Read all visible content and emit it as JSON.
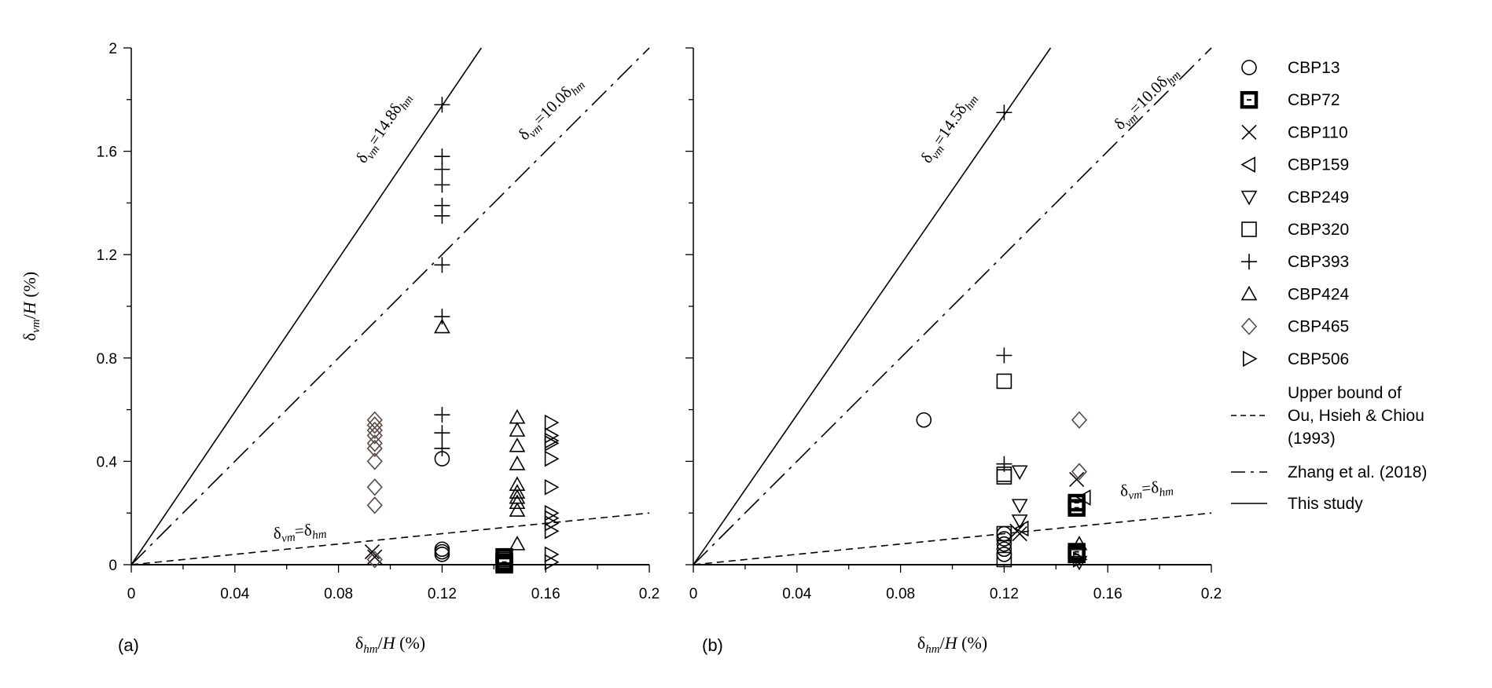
{
  "chart_data": [
    {
      "type": "scatter",
      "panel_label": "(a)",
      "xlabel": "δhm/H (%)",
      "ylabel": "δvm/H (%)",
      "xlim": [
        0,
        0.2
      ],
      "ylim": [
        0,
        2
      ],
      "x_ticks": [
        "0",
        "0.04",
        "0.08",
        "0.12",
        "0.16",
        "0.2"
      ],
      "y_ticks": [
        "0",
        "0.4",
        "0.8",
        "1.2",
        "1.6",
        "2"
      ],
      "reference_lines": [
        {
          "key": "upper_bound",
          "slope": 1.0,
          "label": "δvm=δhm"
        },
        {
          "key": "zhang",
          "slope": 10.0,
          "label": "δvm=10.0δhm"
        },
        {
          "key": "this_study",
          "slope": 14.8,
          "label": "δvm=14.8δhm"
        }
      ],
      "series": [
        {
          "name": "CBP13",
          "marker": "circle",
          "points": [
            [
              0.12,
              0.41
            ],
            [
              0.12,
              0.06
            ],
            [
              0.12,
              0.05
            ],
            [
              0.12,
              0.04
            ]
          ]
        },
        {
          "name": "CBP72",
          "marker": "square-filled",
          "points": [
            [
              0.144,
              0.03
            ],
            [
              0.144,
              0.01
            ],
            [
              0.144,
              0.0
            ]
          ]
        },
        {
          "name": "CBP110",
          "marker": "x",
          "points": [
            [
              0.093,
              0.05
            ],
            [
              0.094,
              0.03
            ]
          ]
        },
        {
          "name": "CBP159",
          "marker": "triangle-left",
          "points": []
        },
        {
          "name": "CBP249",
          "marker": "triangle-down",
          "points": []
        },
        {
          "name": "CBP320",
          "marker": "square",
          "points": [
            [
              0.144,
              0.02
            ],
            [
              0.144,
              0.0
            ]
          ]
        },
        {
          "name": "CBP393",
          "marker": "plus",
          "points": [
            [
              0.12,
              1.78
            ],
            [
              0.12,
              1.58
            ],
            [
              0.12,
              1.53
            ],
            [
              0.12,
              1.47
            ],
            [
              0.12,
              1.39
            ],
            [
              0.12,
              1.35
            ],
            [
              0.12,
              1.16
            ],
            [
              0.12,
              0.96
            ],
            [
              0.12,
              0.58
            ],
            [
              0.12,
              0.51
            ],
            [
              0.12,
              0.45
            ]
          ]
        },
        {
          "name": "CBP424",
          "marker": "triangle-up",
          "points": [
            [
              0.12,
              0.92
            ],
            [
              0.149,
              0.57
            ],
            [
              0.149,
              0.52
            ],
            [
              0.149,
              0.46
            ],
            [
              0.149,
              0.39
            ],
            [
              0.149,
              0.31
            ],
            [
              0.149,
              0.28
            ],
            [
              0.149,
              0.26
            ],
            [
              0.149,
              0.24
            ],
            [
              0.149,
              0.21
            ],
            [
              0.149,
              0.08
            ]
          ]
        },
        {
          "name": "CBP465",
          "marker": "diamond",
          "points": [
            [
              0.094,
              0.56
            ],
            [
              0.094,
              0.54
            ],
            [
              0.094,
              0.52
            ],
            [
              0.094,
              0.5
            ],
            [
              0.094,
              0.47
            ],
            [
              0.094,
              0.45
            ],
            [
              0.094,
              0.4
            ],
            [
              0.094,
              0.3
            ],
            [
              0.094,
              0.23
            ],
            [
              0.094,
              0.02
            ]
          ]
        },
        {
          "name": "CBP506",
          "marker": "triangle-right",
          "points": [
            [
              0.162,
              0.55
            ],
            [
              0.162,
              0.5
            ],
            [
              0.162,
              0.48
            ],
            [
              0.162,
              0.47
            ],
            [
              0.162,
              0.41
            ],
            [
              0.162,
              0.3
            ],
            [
              0.162,
              0.2
            ],
            [
              0.162,
              0.18
            ],
            [
              0.162,
              0.16
            ],
            [
              0.162,
              0.13
            ],
            [
              0.162,
              0.04
            ],
            [
              0.162,
              0.01
            ]
          ]
        }
      ]
    },
    {
      "type": "scatter",
      "panel_label": "(b)",
      "xlabel": "δhm/H (%)",
      "ylabel": "",
      "xlim": [
        0,
        0.2
      ],
      "ylim": [
        0,
        2
      ],
      "x_ticks": [
        "0",
        "0.04",
        "0.08",
        "0.12",
        "0.16",
        "0.2"
      ],
      "y_ticks": [],
      "reference_lines": [
        {
          "key": "upper_bound",
          "slope": 1.0,
          "label": "δvm=δhm"
        },
        {
          "key": "zhang",
          "slope": 10.0,
          "label": "δvm=10.0δhm"
        },
        {
          "key": "this_study",
          "slope": 14.5,
          "label": "δvm=14.5δhm"
        }
      ],
      "series": [
        {
          "name": "CBP13",
          "marker": "circle",
          "points": [
            [
              0.089,
              0.56
            ],
            [
              0.12,
              0.12
            ],
            [
              0.12,
              0.1
            ],
            [
              0.12,
              0.08
            ],
            [
              0.12,
              0.06
            ],
            [
              0.12,
              0.04
            ]
          ]
        },
        {
          "name": "CBP72",
          "marker": "square-filled",
          "points": [
            [
              0.148,
              0.24
            ],
            [
              0.148,
              0.22
            ],
            [
              0.148,
              0.05
            ],
            [
              0.148,
              0.04
            ]
          ]
        },
        {
          "name": "CBP110",
          "marker": "x",
          "points": [
            [
              0.148,
              0.33
            ],
            [
              0.125,
              0.13
            ],
            [
              0.126,
              0.12
            ]
          ]
        },
        {
          "name": "CBP159",
          "marker": "triangle-left",
          "points": [
            [
              0.151,
              0.26
            ],
            [
              0.127,
              0.14
            ]
          ]
        },
        {
          "name": "CBP249",
          "marker": "triangle-down",
          "points": [
            [
              0.126,
              0.36
            ],
            [
              0.126,
              0.23
            ],
            [
              0.126,
              0.17
            ],
            [
              0.149,
              0.01
            ]
          ]
        },
        {
          "name": "CBP320",
          "marker": "square",
          "points": [
            [
              0.12,
              0.71
            ],
            [
              0.12,
              0.35
            ],
            [
              0.12,
              0.34
            ],
            [
              0.12,
              0.12
            ],
            [
              0.12,
              0.02
            ]
          ]
        },
        {
          "name": "CBP393",
          "marker": "plus",
          "points": [
            [
              0.12,
              1.75
            ],
            [
              0.12,
              0.81
            ],
            [
              0.12,
              0.39
            ]
          ]
        },
        {
          "name": "CBP424",
          "marker": "triangle-up",
          "points": [
            [
              0.149,
              0.08
            ]
          ]
        },
        {
          "name": "CBP465",
          "marker": "diamond",
          "points": [
            [
              0.149,
              0.56
            ],
            [
              0.149,
              0.36
            ]
          ]
        },
        {
          "name": "CBP506",
          "marker": "triangle-right",
          "points": [
            [
              0.149,
              0.02
            ]
          ]
        }
      ]
    }
  ],
  "legend": {
    "placement": "right",
    "markers": [
      {
        "name": "CBP13",
        "marker": "circle"
      },
      {
        "name": "CBP72",
        "marker": "square-filled"
      },
      {
        "name": "CBP110",
        "marker": "x"
      },
      {
        "name": "CBP159",
        "marker": "triangle-left"
      },
      {
        "name": "CBP249",
        "marker": "triangle-down"
      },
      {
        "name": "CBP320",
        "marker": "square"
      },
      {
        "name": "CBP393",
        "marker": "plus"
      },
      {
        "name": "CBP424",
        "marker": "triangle-up"
      },
      {
        "name": "CBP465",
        "marker": "diamond"
      },
      {
        "name": "CBP506",
        "marker": "triangle-right"
      }
    ],
    "lines": [
      {
        "key": "upper_bound",
        "style": "dashed",
        "label_lines": [
          "Upper bound of",
          "Ou, Hsieh & Chiou",
          "(1993)"
        ]
      },
      {
        "key": "zhang",
        "style": "dash-dot",
        "label_lines": [
          "Zhang et al. (2018)"
        ]
      },
      {
        "key": "this_study",
        "style": "solid",
        "label_lines": [
          "This study"
        ]
      }
    ]
  }
}
